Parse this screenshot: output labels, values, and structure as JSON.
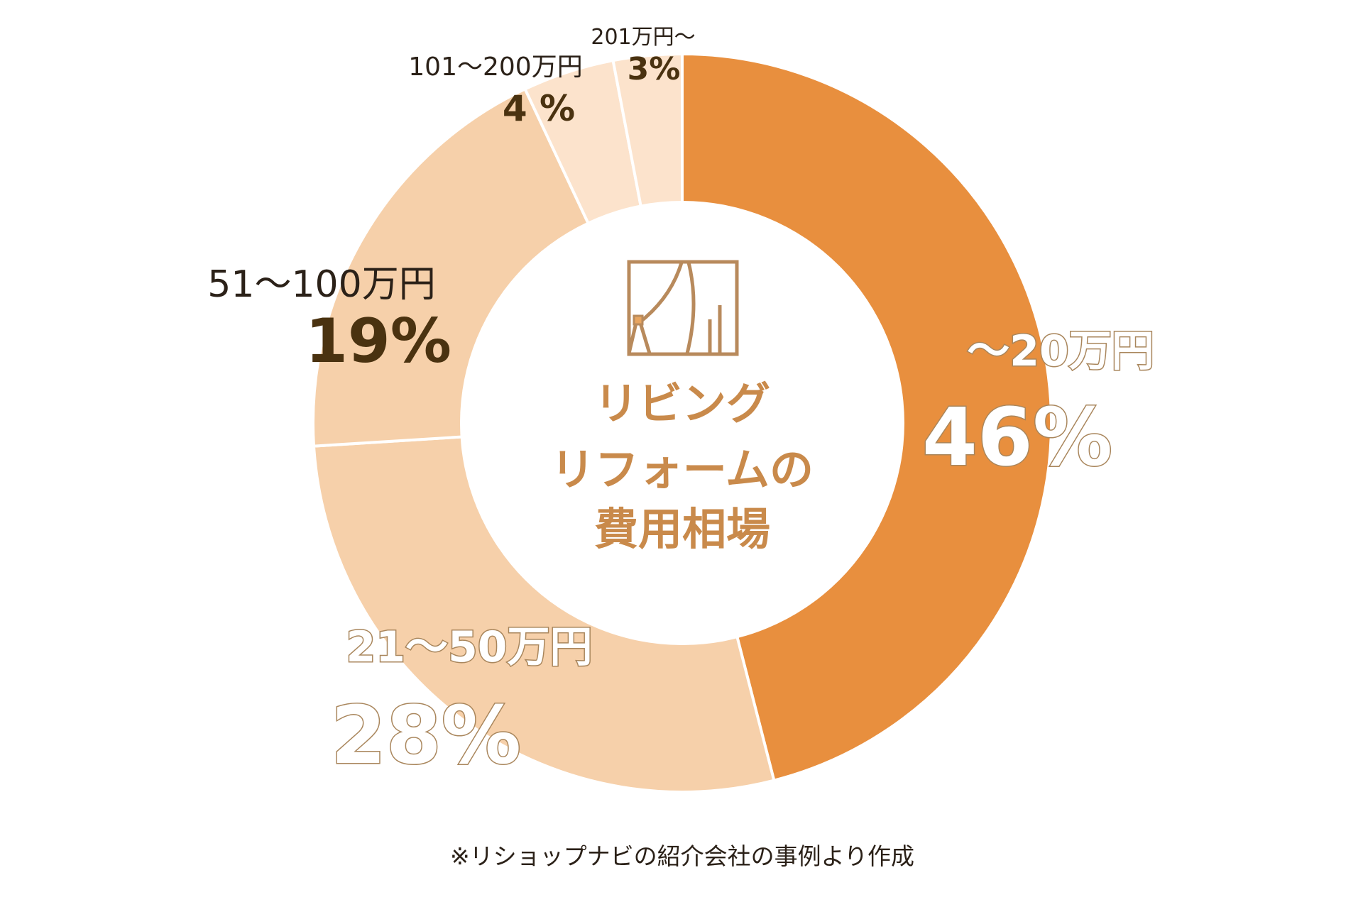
{
  "chart_data": {
    "type": "pie",
    "donut": true,
    "title_lines": [
      "リビング",
      "リフォームの",
      "費用相場"
    ],
    "center_icon": "curtain-window-icon",
    "start": "12 o'clock, clockwise",
    "slices": [
      {
        "label": "〜20万円",
        "value": 46,
        "value_label": "46%",
        "color": "#E88F3E"
      },
      {
        "label": "21〜50万円",
        "value": 28,
        "value_label": "28%",
        "color": "#F6D0AA"
      },
      {
        "label": "51〜100万円",
        "value": 19,
        "value_label": "19%",
        "color": "#F6D0AA"
      },
      {
        "label": "101〜200万円",
        "value": 4,
        "value_label": "4 %",
        "color": "#FCE3CC"
      },
      {
        "label": "201万円〜",
        "value": 3,
        "value_label": "3%",
        "color": "#FCE3CC"
      }
    ],
    "footnote": "※リショップナビの紹介会社の事例より作成"
  }
}
